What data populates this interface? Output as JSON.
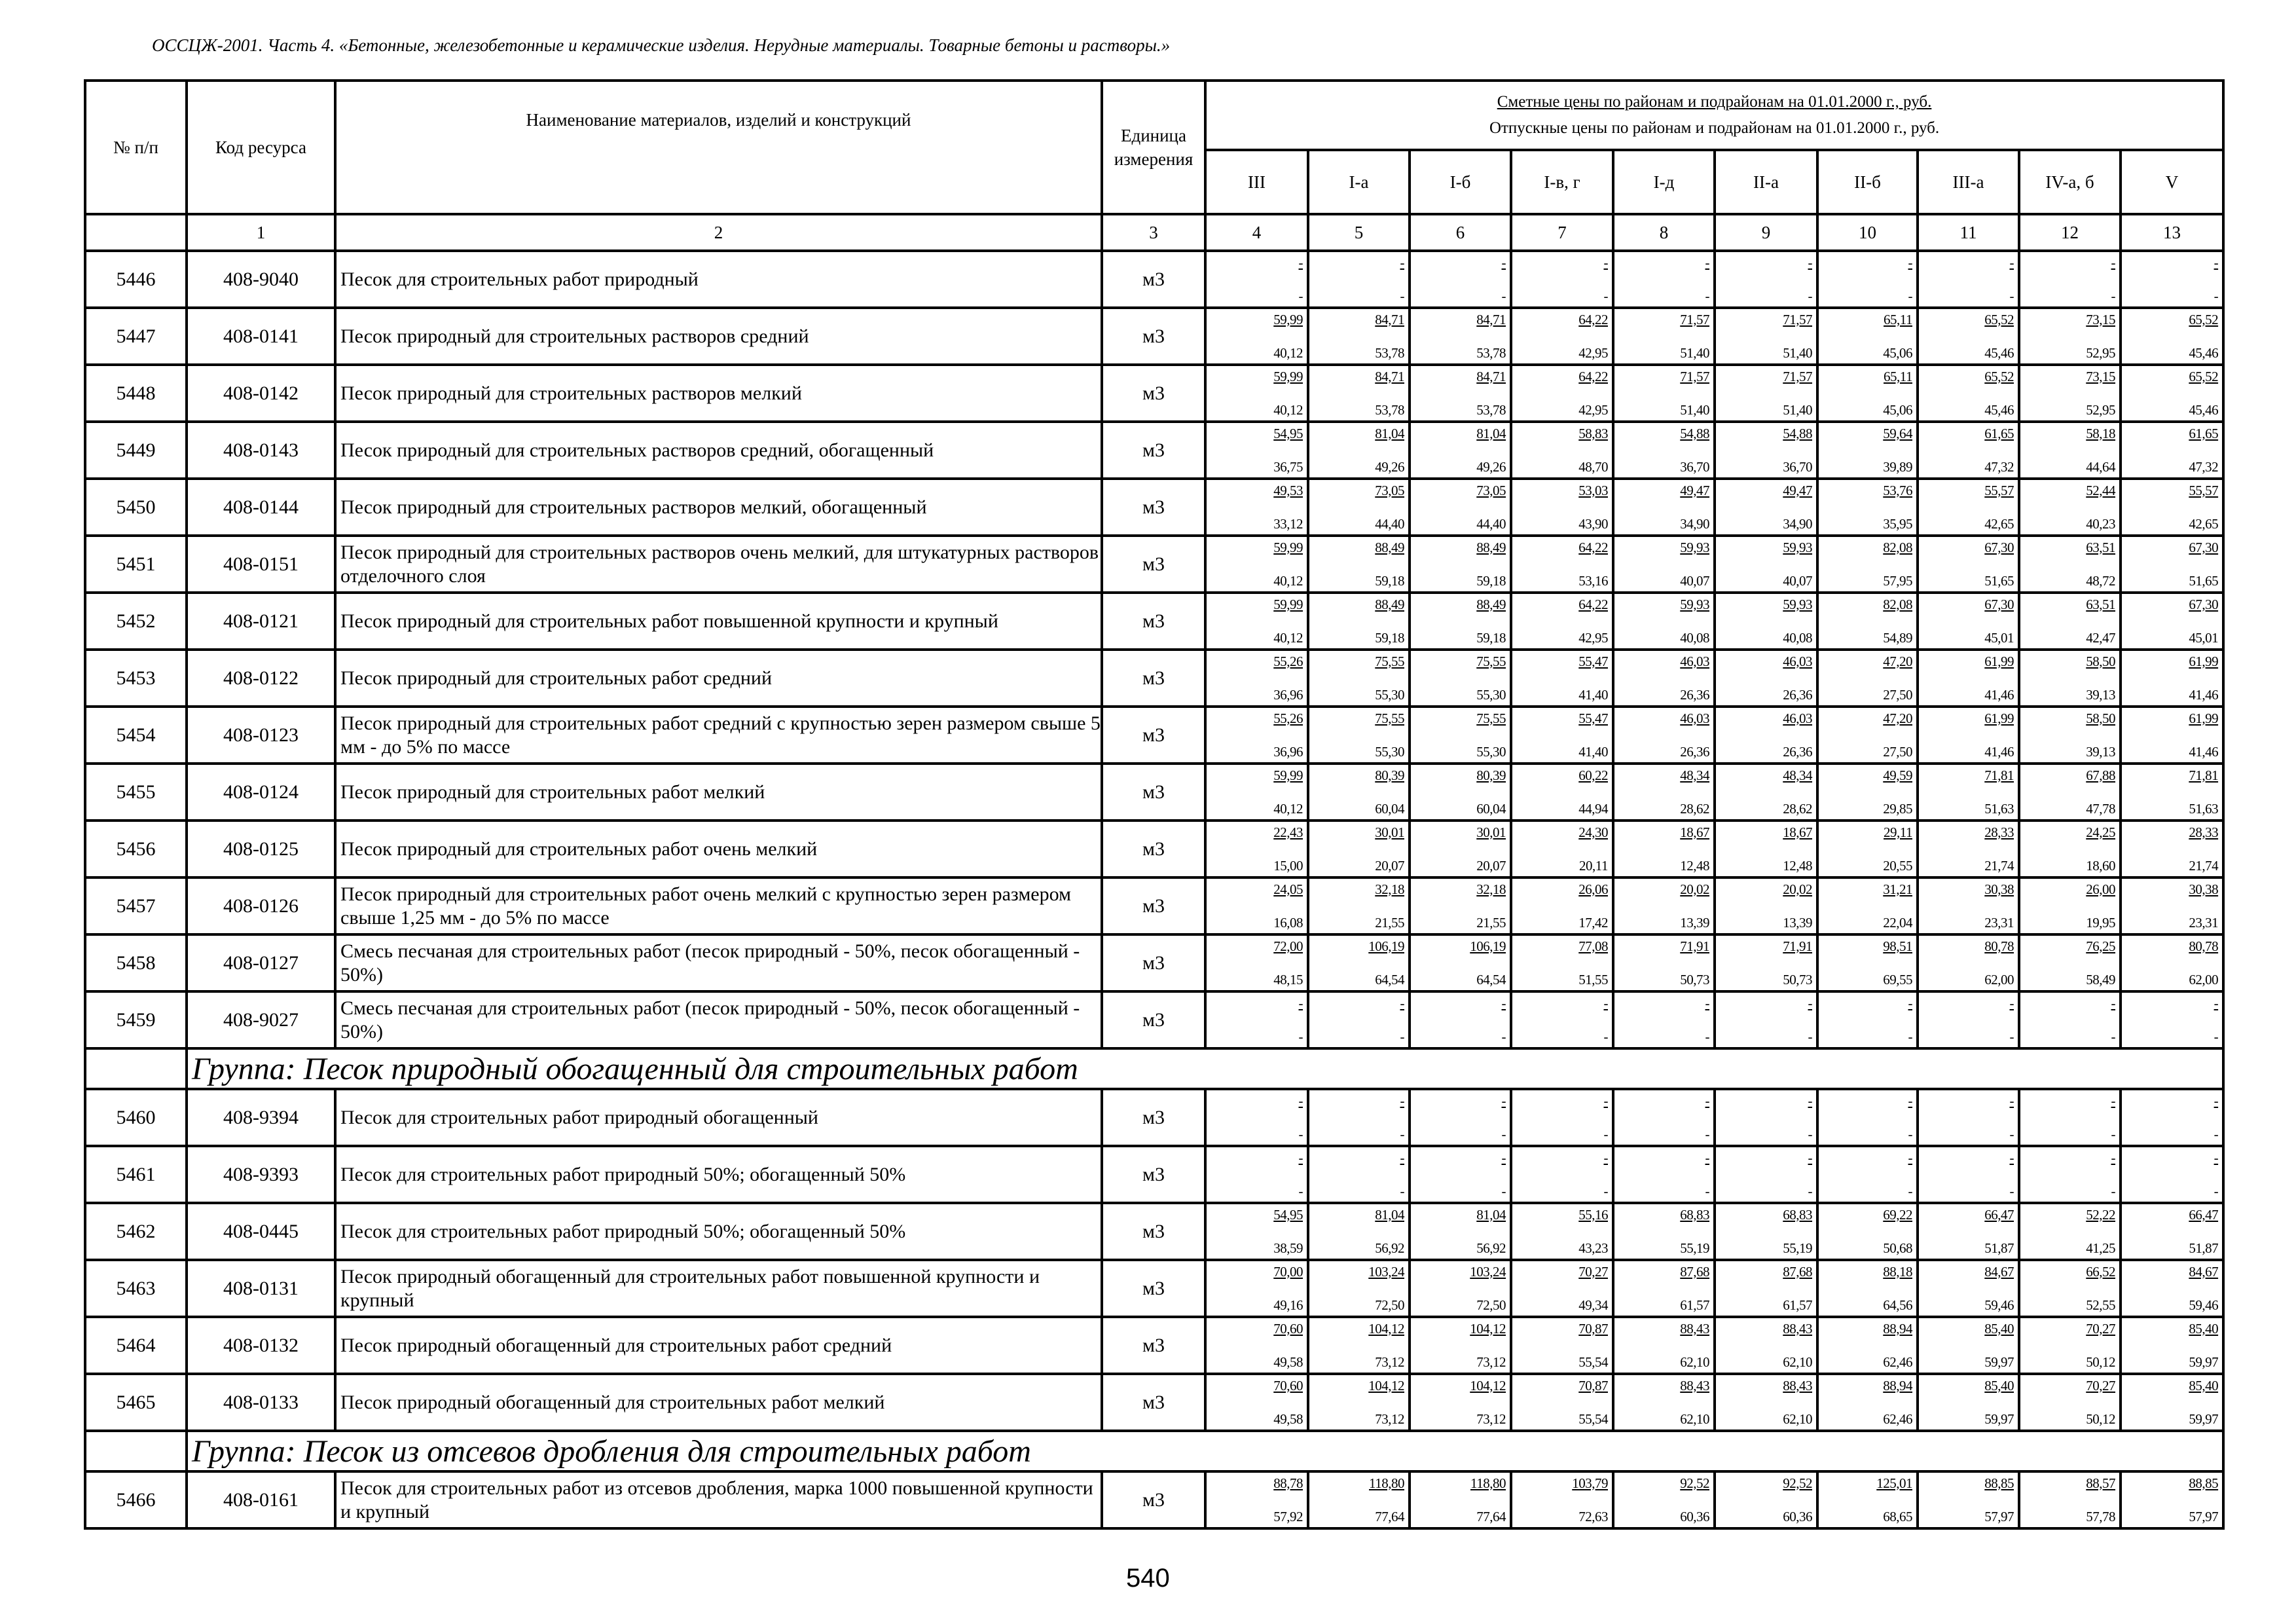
{
  "title": "ОССЦЖ-2001. Часть 4. «Бетонные, железобетонные и керамические изделия. Нерудные материалы. Товарные бетоны и растворы.»",
  "header": {
    "num": "№ п/п",
    "code": "Код ресурса",
    "name": "Наименование материалов, изделий и конструкций",
    "unit": "Единица измерения",
    "prices_top": "Сметные цены по районам и подрайонам на 01.01.2000 г., руб.",
    "prices_bottom": "Отпускные цены по районам и подрайонам на 01.01.2000 г., руб.",
    "regions": [
      "III",
      "I-а",
      "I-б",
      "I-в, г",
      "I-д",
      "II-а",
      "II-б",
      "III-а",
      "IV-а, б",
      "V"
    ],
    "col_numbers": [
      "",
      "1",
      "2",
      "3",
      "4",
      "5",
      "6",
      "7",
      "8",
      "9",
      "10",
      "11",
      "12",
      "13"
    ]
  },
  "rows": [
    {
      "num": "5446",
      "code": "408-9040",
      "name": "Песок для строительных работ природный",
      "unit": "м3",
      "prices": [
        [
          "-",
          "-"
        ],
        [
          "-",
          "-"
        ],
        [
          "-",
          "-"
        ],
        [
          "-",
          "-"
        ],
        [
          "-",
          "-"
        ],
        [
          "-",
          "-"
        ],
        [
          "-",
          "-"
        ],
        [
          "-",
          "-"
        ],
        [
          "-",
          "-"
        ],
        [
          "-",
          "-"
        ]
      ]
    },
    {
      "num": "5447",
      "code": "408-0141",
      "name": "Песок природный для строительных растворов средний",
      "unit": "м3",
      "prices": [
        [
          "59,99",
          "40,12"
        ],
        [
          "84,71",
          "53,78"
        ],
        [
          "84,71",
          "53,78"
        ],
        [
          "64,22",
          "42,95"
        ],
        [
          "71,57",
          "51,40"
        ],
        [
          "71,57",
          "51,40"
        ],
        [
          "65,11",
          "45,06"
        ],
        [
          "65,52",
          "45,46"
        ],
        [
          "73,15",
          "52,95"
        ],
        [
          "65,52",
          "45,46"
        ]
      ]
    },
    {
      "num": "5448",
      "code": "408-0142",
      "name": "Песок природный для строительных растворов мелкий",
      "unit": "м3",
      "prices": [
        [
          "59,99",
          "40,12"
        ],
        [
          "84,71",
          "53,78"
        ],
        [
          "84,71",
          "53,78"
        ],
        [
          "64,22",
          "42,95"
        ],
        [
          "71,57",
          "51,40"
        ],
        [
          "71,57",
          "51,40"
        ],
        [
          "65,11",
          "45,06"
        ],
        [
          "65,52",
          "45,46"
        ],
        [
          "73,15",
          "52,95"
        ],
        [
          "65,52",
          "45,46"
        ]
      ]
    },
    {
      "num": "5449",
      "code": "408-0143",
      "name": "Песок природный для строительных растворов средний, обогащенный",
      "unit": "м3",
      "prices": [
        [
          "54,95",
          "36,75"
        ],
        [
          "81,04",
          "49,26"
        ],
        [
          "81,04",
          "49,26"
        ],
        [
          "58,83",
          "48,70"
        ],
        [
          "54,88",
          "36,70"
        ],
        [
          "54,88",
          "36,70"
        ],
        [
          "59,64",
          "39,89"
        ],
        [
          "61,65",
          "47,32"
        ],
        [
          "58,18",
          "44,64"
        ],
        [
          "61,65",
          "47,32"
        ]
      ]
    },
    {
      "num": "5450",
      "code": "408-0144",
      "name": "Песок природный для строительных растворов мелкий, обогащенный",
      "unit": "м3",
      "prices": [
        [
          "49,53",
          "33,12"
        ],
        [
          "73,05",
          "44,40"
        ],
        [
          "73,05",
          "44,40"
        ],
        [
          "53,03",
          "43,90"
        ],
        [
          "49,47",
          "34,90"
        ],
        [
          "49,47",
          "34,90"
        ],
        [
          "53,76",
          "35,95"
        ],
        [
          "55,57",
          "42,65"
        ],
        [
          "52,44",
          "40,23"
        ],
        [
          "55,57",
          "42,65"
        ]
      ]
    },
    {
      "num": "5451",
      "code": "408-0151",
      "name": "Песок природный для строительных растворов очень мелкий, для штукатурных растворов отделочного слоя",
      "unit": "м3",
      "prices": [
        [
          "59,99",
          "40,12"
        ],
        [
          "88,49",
          "59,18"
        ],
        [
          "88,49",
          "59,18"
        ],
        [
          "64,22",
          "53,16"
        ],
        [
          "59,93",
          "40,07"
        ],
        [
          "59,93",
          "40,07"
        ],
        [
          "82,08",
          "57,95"
        ],
        [
          "67,30",
          "51,65"
        ],
        [
          "63,51",
          "48,72"
        ],
        [
          "67,30",
          "51,65"
        ]
      ]
    },
    {
      "num": "5452",
      "code": "408-0121",
      "name": "Песок природный для строительных работ повышенной крупности и крупный",
      "unit": "м3",
      "prices": [
        [
          "59,99",
          "40,12"
        ],
        [
          "88,49",
          "59,18"
        ],
        [
          "88,49",
          "59,18"
        ],
        [
          "64,22",
          "42,95"
        ],
        [
          "59,93",
          "40,08"
        ],
        [
          "59,93",
          "40,08"
        ],
        [
          "82,08",
          "54,89"
        ],
        [
          "67,30",
          "45,01"
        ],
        [
          "63,51",
          "42,47"
        ],
        [
          "67,30",
          "45,01"
        ]
      ]
    },
    {
      "num": "5453",
      "code": "408-0122",
      "name": "Песок природный для строительных работ средний",
      "unit": "м3",
      "prices": [
        [
          "55,26",
          "36,96"
        ],
        [
          "75,55",
          "55,30"
        ],
        [
          "75,55",
          "55,30"
        ],
        [
          "55,47",
          "41,40"
        ],
        [
          "46,03",
          "26,36"
        ],
        [
          "46,03",
          "26,36"
        ],
        [
          "47,20",
          "27,50"
        ],
        [
          "61,99",
          "41,46"
        ],
        [
          "58,50",
          "39,13"
        ],
        [
          "61,99",
          "41,46"
        ]
      ]
    },
    {
      "num": "5454",
      "code": "408-0123",
      "name": "Песок природный для строительных работ средний с крупностью зерен размером свыше 5 мм - до 5% по массе",
      "unit": "м3",
      "prices": [
        [
          "55,26",
          "36,96"
        ],
        [
          "75,55",
          "55,30"
        ],
        [
          "75,55",
          "55,30"
        ],
        [
          "55,47",
          "41,40"
        ],
        [
          "46,03",
          "26,36"
        ],
        [
          "46,03",
          "26,36"
        ],
        [
          "47,20",
          "27,50"
        ],
        [
          "61,99",
          "41,46"
        ],
        [
          "58,50",
          "39,13"
        ],
        [
          "61,99",
          "41,46"
        ]
      ]
    },
    {
      "num": "5455",
      "code": "408-0124",
      "name": "Песок природный для строительных работ мелкий",
      "unit": "м3",
      "prices": [
        [
          "59,99",
          "40,12"
        ],
        [
          "80,39",
          "60,04"
        ],
        [
          "80,39",
          "60,04"
        ],
        [
          "60,22",
          "44,94"
        ],
        [
          "48,34",
          "28,62"
        ],
        [
          "48,34",
          "28,62"
        ],
        [
          "49,59",
          "29,85"
        ],
        [
          "71,81",
          "51,63"
        ],
        [
          "67,88",
          "47,78"
        ],
        [
          "71,81",
          "51,63"
        ]
      ]
    },
    {
      "num": "5456",
      "code": "408-0125",
      "name": "Песок природный для строительных работ очень мелкий",
      "unit": "м3",
      "prices": [
        [
          "22,43",
          "15,00"
        ],
        [
          "30,01",
          "20,07"
        ],
        [
          "30,01",
          "20,07"
        ],
        [
          "24,30",
          "20,11"
        ],
        [
          "18,67",
          "12,48"
        ],
        [
          "18,67",
          "12,48"
        ],
        [
          "29,11",
          "20,55"
        ],
        [
          "28,33",
          "21,74"
        ],
        [
          "24,25",
          "18,60"
        ],
        [
          "28,33",
          "21,74"
        ]
      ]
    },
    {
      "num": "5457",
      "code": "408-0126",
      "name": "Песок природный для строительных работ очень мелкий с крупностью зерен размером свыше 1,25 мм - до 5% по массе",
      "unit": "м3",
      "prices": [
        [
          "24,05",
          "16,08"
        ],
        [
          "32,18",
          "21,55"
        ],
        [
          "32,18",
          "21,55"
        ],
        [
          "26,06",
          "17,42"
        ],
        [
          "20,02",
          "13,39"
        ],
        [
          "20,02",
          "13,39"
        ],
        [
          "31,21",
          "22,04"
        ],
        [
          "30,38",
          "23,31"
        ],
        [
          "26,00",
          "19,95"
        ],
        [
          "30,38",
          "23,31"
        ]
      ]
    },
    {
      "num": "5458",
      "code": "408-0127",
      "name": "Смесь песчаная для строительных работ (песок природный - 50%, песок обогащенный - 50%)",
      "unit": "м3",
      "prices": [
        [
          "72,00",
          "48,15"
        ],
        [
          "106,19",
          "64,54"
        ],
        [
          "106,19",
          "64,54"
        ],
        [
          "77,08",
          "51,55"
        ],
        [
          "71,91",
          "50,73"
        ],
        [
          "71,91",
          "50,73"
        ],
        [
          "98,51",
          "69,55"
        ],
        [
          "80,78",
          "62,00"
        ],
        [
          "76,25",
          "58,49"
        ],
        [
          "80,78",
          "62,00"
        ]
      ]
    },
    {
      "num": "5459",
      "code": "408-9027",
      "name": "Смесь песчаная для строительных работ (песок природный - 50%, песок обогащенный - 50%)",
      "unit": "м3",
      "prices": [
        [
          "-",
          "-"
        ],
        [
          "-",
          "-"
        ],
        [
          "-",
          "-"
        ],
        [
          "-",
          "-"
        ],
        [
          "-",
          "-"
        ],
        [
          "-",
          "-"
        ],
        [
          "-",
          "-"
        ],
        [
          "-",
          "-"
        ],
        [
          "-",
          "-"
        ],
        [
          "-",
          "-"
        ]
      ]
    },
    {
      "group": "Группа: Песок природный обогащенный для строительных работ"
    },
    {
      "num": "5460",
      "code": "408-9394",
      "name": "Песок для строительных работ природный обогащенный",
      "unit": "м3",
      "prices": [
        [
          "-",
          "-"
        ],
        [
          "-",
          "-"
        ],
        [
          "-",
          "-"
        ],
        [
          "-",
          "-"
        ],
        [
          "-",
          "-"
        ],
        [
          "-",
          "-"
        ],
        [
          "-",
          "-"
        ],
        [
          "-",
          "-"
        ],
        [
          "-",
          "-"
        ],
        [
          "-",
          "-"
        ]
      ]
    },
    {
      "num": "5461",
      "code": "408-9393",
      "name": "Песок для строительных работ природный 50%; обогащенный 50%",
      "unit": "м3",
      "prices": [
        [
          "-",
          "-"
        ],
        [
          "-",
          "-"
        ],
        [
          "-",
          "-"
        ],
        [
          "-",
          "-"
        ],
        [
          "-",
          "-"
        ],
        [
          "-",
          "-"
        ],
        [
          "-",
          "-"
        ],
        [
          "-",
          "-"
        ],
        [
          "-",
          "-"
        ],
        [
          "-",
          "-"
        ]
      ]
    },
    {
      "num": "5462",
      "code": "408-0445",
      "name": "Песок для строительных работ природный 50%; обогащенный 50%",
      "unit": "м3",
      "prices": [
        [
          "54,95",
          "38,59"
        ],
        [
          "81,04",
          "56,92"
        ],
        [
          "81,04",
          "56,92"
        ],
        [
          "55,16",
          "43,23"
        ],
        [
          "68,83",
          "55,19"
        ],
        [
          "68,83",
          "55,19"
        ],
        [
          "69,22",
          "50,68"
        ],
        [
          "66,47",
          "51,87"
        ],
        [
          "52,22",
          "41,25"
        ],
        [
          "66,47",
          "51,87"
        ]
      ]
    },
    {
      "num": "5463",
      "code": "408-0131",
      "name": "Песок природный обогащенный для строительных работ повышенной крупности и крупный",
      "unit": "м3",
      "prices": [
        [
          "70,00",
          "49,16"
        ],
        [
          "103,24",
          "72,50"
        ],
        [
          "103,24",
          "72,50"
        ],
        [
          "70,27",
          "49,34"
        ],
        [
          "87,68",
          "61,57"
        ],
        [
          "87,68",
          "61,57"
        ],
        [
          "88,18",
          "64,56"
        ],
        [
          "84,67",
          "59,46"
        ],
        [
          "66,52",
          "52,55"
        ],
        [
          "84,67",
          "59,46"
        ]
      ]
    },
    {
      "num": "5464",
      "code": "408-0132",
      "name": "Песок природный обогащенный для строительных работ средний",
      "unit": "м3",
      "prices": [
        [
          "70,60",
          "49,58"
        ],
        [
          "104,12",
          "73,12"
        ],
        [
          "104,12",
          "73,12"
        ],
        [
          "70,87",
          "55,54"
        ],
        [
          "88,43",
          "62,10"
        ],
        [
          "88,43",
          "62,10"
        ],
        [
          "88,94",
          "62,46"
        ],
        [
          "85,40",
          "59,97"
        ],
        [
          "70,27",
          "50,12"
        ],
        [
          "85,40",
          "59,97"
        ]
      ]
    },
    {
      "num": "5465",
      "code": "408-0133",
      "name": "Песок природный обогащенный для строительных работ мелкий",
      "unit": "м3",
      "prices": [
        [
          "70,60",
          "49,58"
        ],
        [
          "104,12",
          "73,12"
        ],
        [
          "104,12",
          "73,12"
        ],
        [
          "70,87",
          "55,54"
        ],
        [
          "88,43",
          "62,10"
        ],
        [
          "88,43",
          "62,10"
        ],
        [
          "88,94",
          "62,46"
        ],
        [
          "85,40",
          "59,97"
        ],
        [
          "70,27",
          "50,12"
        ],
        [
          "85,40",
          "59,97"
        ]
      ]
    },
    {
      "group": "Группа: Песок из отсевов дробления для строительных работ"
    },
    {
      "num": "5466",
      "code": "408-0161",
      "name": "Песок для строительных работ из отсевов дробления, марка 1000 повышенной крупности и крупный",
      "unit": "м3",
      "prices": [
        [
          "88,78",
          "57,92"
        ],
        [
          "118,80",
          "77,64"
        ],
        [
          "118,80",
          "77,64"
        ],
        [
          "103,79",
          "72,63"
        ],
        [
          "92,52",
          "60,36"
        ],
        [
          "92,52",
          "60,36"
        ],
        [
          "125,01",
          "68,65"
        ],
        [
          "88,85",
          "57,97"
        ],
        [
          "88,57",
          "57,78"
        ],
        [
          "88,85",
          "57,97"
        ]
      ]
    }
  ],
  "page_number": "540"
}
